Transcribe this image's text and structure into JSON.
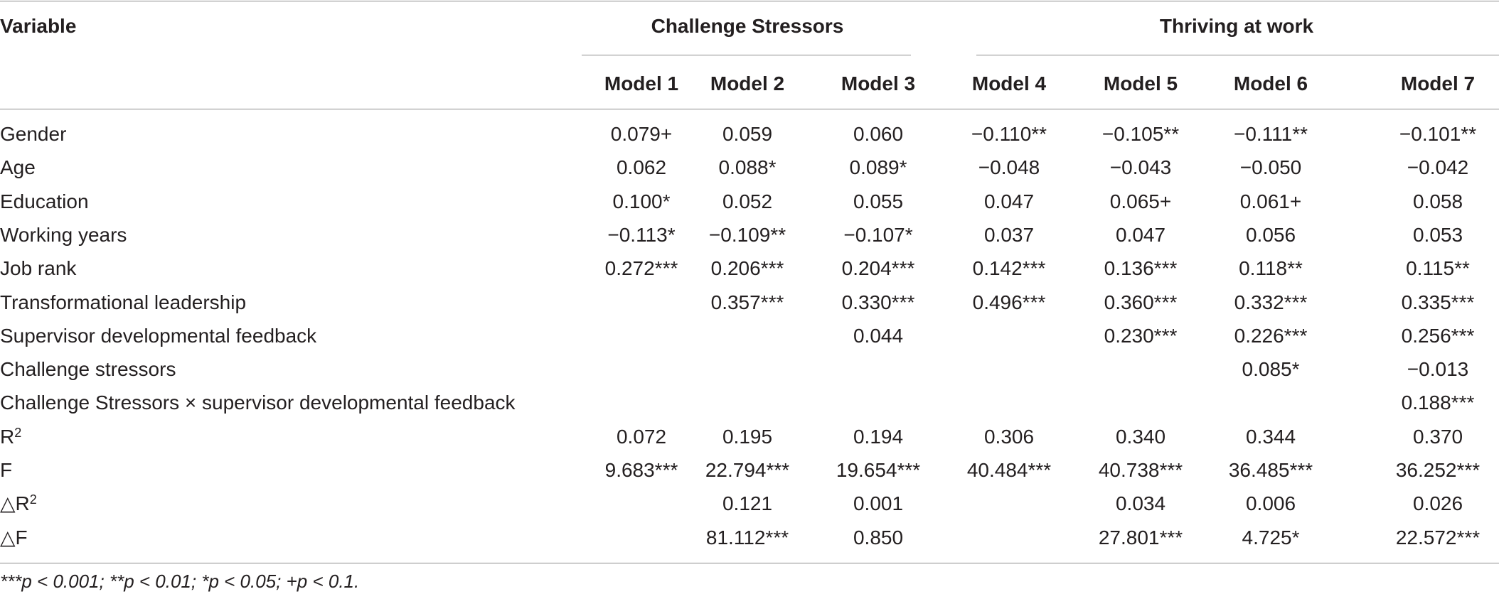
{
  "table": {
    "variable_header": "Variable",
    "group_headers": [
      "Challenge Stressors",
      "Thriving at work"
    ],
    "model_headers": [
      "Model 1",
      "Model 2",
      "Model 3",
      "Model 4",
      "Model 5",
      "Model 6",
      "Model 7"
    ],
    "rows": [
      {
        "label": "Gender",
        "label_sup": "",
        "cells": [
          "0.079+",
          "0.059",
          "0.060",
          "−0.110**",
          "−0.105**",
          "−0.111**",
          "−0.101**"
        ]
      },
      {
        "label": "Age",
        "label_sup": "",
        "cells": [
          "0.062",
          "0.088*",
          "0.089*",
          "−0.048",
          "−0.043",
          "−0.050",
          "−0.042"
        ]
      },
      {
        "label": "Education",
        "label_sup": "",
        "cells": [
          "0.100*",
          "0.052",
          "0.055",
          "0.047",
          "0.065+",
          "0.061+",
          "0.058"
        ]
      },
      {
        "label": "Working years",
        "label_sup": "",
        "cells": [
          "−0.113*",
          "−0.109**",
          "−0.107*",
          "0.037",
          "0.047",
          "0.056",
          "0.053"
        ]
      },
      {
        "label": "Job rank",
        "label_sup": "",
        "cells": [
          "0.272***",
          "0.206***",
          "0.204***",
          "0.142***",
          "0.136***",
          "0.118**",
          "0.115**"
        ]
      },
      {
        "label": "Transformational leadership",
        "label_sup": "",
        "cells": [
          "",
          "0.357***",
          "0.330***",
          "0.496***",
          "0.360***",
          "0.332***",
          "0.335***"
        ]
      },
      {
        "label": "Supervisor developmental feedback",
        "label_sup": "",
        "cells": [
          "",
          "",
          "0.044",
          "",
          "0.230***",
          "0.226***",
          "0.256***"
        ]
      },
      {
        "label": "Challenge stressors",
        "label_sup": "",
        "cells": [
          "",
          "",
          "",
          "",
          "",
          "0.085*",
          "−0.013"
        ]
      },
      {
        "label": "Challenge Stressors × supervisor developmental feedback",
        "label_sup": "",
        "cells": [
          "",
          "",
          "",
          "",
          "",
          "",
          "0.188***"
        ]
      },
      {
        "label": "R",
        "label_sup": "2",
        "cells": [
          "0.072",
          "0.195",
          "0.194",
          "0.306",
          "0.340",
          "0.344",
          "0.370"
        ]
      },
      {
        "label": "F",
        "label_sup": "",
        "cells": [
          "9.683***",
          "22.794***",
          "19.654***",
          "40.484***",
          "40.738***",
          "36.485***",
          "36.252***"
        ]
      },
      {
        "label": "△R",
        "label_sup": "2",
        "cells": [
          "",
          "0.121",
          "0.001",
          "",
          "0.034",
          "0.006",
          "0.026"
        ]
      },
      {
        "label": "△F",
        "label_sup": "",
        "cells": [
          "",
          "81.112***",
          "0.850",
          "",
          "27.801***",
          "4.725*",
          "22.572***"
        ]
      }
    ],
    "footnote": "***p < 0.001; **p < 0.01; *p < 0.05; +p < 0.1."
  }
}
